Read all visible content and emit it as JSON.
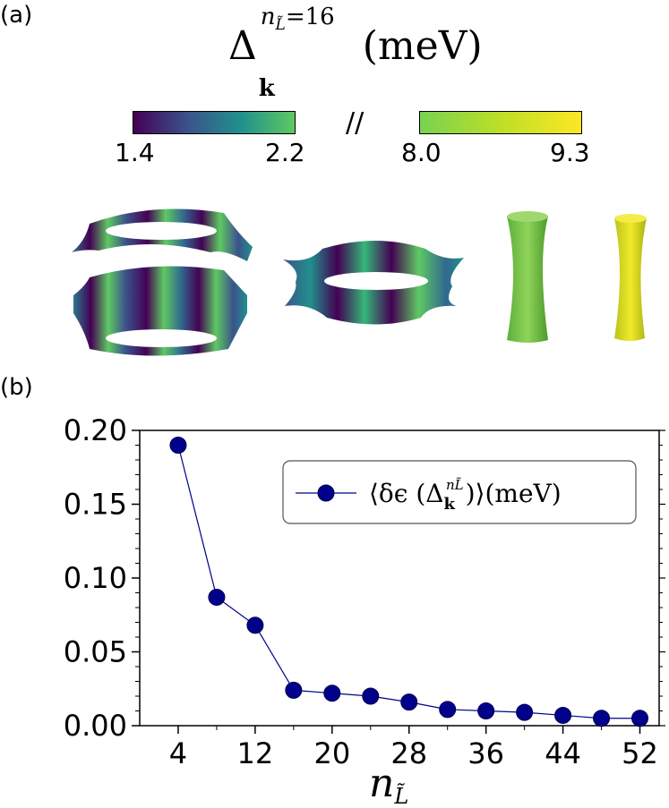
{
  "panel_a": {
    "label": "(a)",
    "title_symbol": "Δ",
    "title_subscript": "k",
    "title_superscript": "n",
    "title_superscript_sub": "L̃",
    "title_superscript_value": "=16",
    "title_unit": "(meV)",
    "break_mark": "//",
    "colorbar_left": {
      "min": "1.4",
      "max": "2.2",
      "colors": [
        "#440154",
        "#3b528b",
        "#21908d",
        "#5ec962"
      ]
    },
    "colorbar_right": {
      "min": "8.0",
      "max": "9.3",
      "colors": [
        "#7ad151",
        "#bddf26",
        "#fde725"
      ]
    }
  },
  "panel_b": {
    "label": "(b)",
    "legend_text": "⟨δϵ (Δ",
    "legend_sub": "k",
    "legend_sup": "nL̃",
    "legend_close": ")⟩(meV)",
    "xlabel_main": "n",
    "xlabel_sub": "L̃"
  },
  "chart_data": {
    "type": "line",
    "marker": "circle",
    "color": "#00008b",
    "x": [
      4,
      8,
      12,
      16,
      20,
      24,
      28,
      32,
      36,
      40,
      44,
      48,
      52
    ],
    "series": [
      {
        "name": "⟨δϵ(Δk^nL̃)⟩(meV)",
        "values": [
          0.19,
          0.087,
          0.068,
          0.024,
          0.022,
          0.02,
          0.016,
          0.011,
          0.01,
          0.009,
          0.007,
          0.005,
          0.005
        ]
      }
    ],
    "xticks": [
      "4",
      "12",
      "20",
      "28",
      "36",
      "44",
      "52"
    ],
    "yticks": [
      "0.00",
      "0.05",
      "0.10",
      "0.15",
      "0.20"
    ],
    "xlim": [
      0,
      54
    ],
    "ylim": [
      0,
      0.2
    ],
    "legend_position": "top-right"
  }
}
